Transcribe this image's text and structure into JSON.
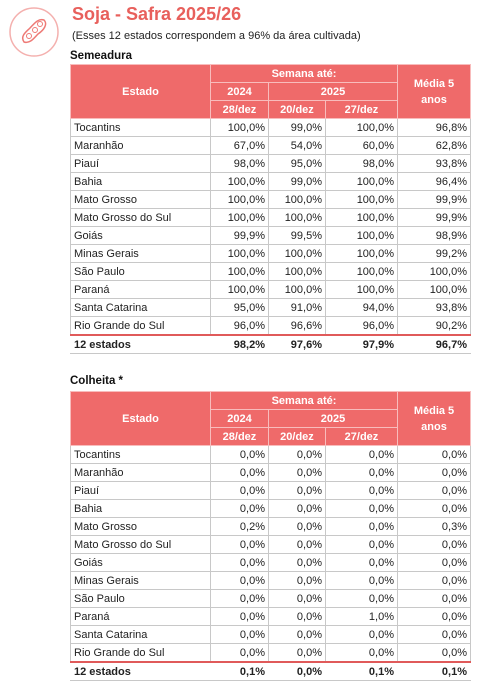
{
  "header": {
    "title": "Soja - Safra 2025/26",
    "subtitle": "(Esses 12 estados correspondem a 96% da área cultivada)"
  },
  "sections": [
    {
      "title": "Semeadura",
      "columns": {
        "estado": "Estado",
        "week": "Semana até:",
        "media": "Média  5 anos",
        "years": [
          "2024",
          "2025"
        ],
        "dates": [
          "28/dez",
          "20/dez",
          "27/dez"
        ]
      },
      "rows": [
        [
          "Tocantins",
          "100,0%",
          "99,0%",
          "100,0%",
          "96,8%"
        ],
        [
          "Maranhão",
          "67,0%",
          "54,0%",
          "60,0%",
          "62,8%"
        ],
        [
          "Piauí",
          "98,0%",
          "95,0%",
          "98,0%",
          "93,8%"
        ],
        [
          "Bahia",
          "100,0%",
          "99,0%",
          "100,0%",
          "96,4%"
        ],
        [
          "Mato Grosso",
          "100,0%",
          "100,0%",
          "100,0%",
          "99,9%"
        ],
        [
          "Mato Grosso do Sul",
          "100,0%",
          "100,0%",
          "100,0%",
          "99,9%"
        ],
        [
          "Goiás",
          "99,9%",
          "99,5%",
          "100,0%",
          "98,9%"
        ],
        [
          "Minas Gerais",
          "100,0%",
          "100,0%",
          "100,0%",
          "99,2%"
        ],
        [
          "São Paulo",
          "100,0%",
          "100,0%",
          "100,0%",
          "100,0%"
        ],
        [
          "Paraná",
          "100,0%",
          "100,0%",
          "100,0%",
          "100,0%"
        ],
        [
          "Santa Catarina",
          "95,0%",
          "91,0%",
          "94,0%",
          "93,8%"
        ],
        [
          "Rio Grande do Sul",
          "96,0%",
          "96,6%",
          "96,0%",
          "90,2%"
        ]
      ],
      "total": [
        "12 estados",
        "98,2%",
        "97,6%",
        "97,9%",
        "96,7%"
      ]
    },
    {
      "title": "Colheita *",
      "columns": {
        "estado": "Estado",
        "week": "Semana até:",
        "media": "Média  5 anos",
        "years": [
          "2024",
          "2025"
        ],
        "dates": [
          "28/dez",
          "20/dez",
          "27/dez"
        ]
      },
      "rows": [
        [
          "Tocantins",
          "0,0%",
          "0,0%",
          "0,0%",
          "0,0%"
        ],
        [
          "Maranhão",
          "0,0%",
          "0,0%",
          "0,0%",
          "0,0%"
        ],
        [
          "Piauí",
          "0,0%",
          "0,0%",
          "0,0%",
          "0,0%"
        ],
        [
          "Bahia",
          "0,0%",
          "0,0%",
          "0,0%",
          "0,0%"
        ],
        [
          "Mato Grosso",
          "0,2%",
          "0,0%",
          "0,0%",
          "0,3%"
        ],
        [
          "Mato Grosso do Sul",
          "0,0%",
          "0,0%",
          "0,0%",
          "0,0%"
        ],
        [
          "Goiás",
          "0,0%",
          "0,0%",
          "0,0%",
          "0,0%"
        ],
        [
          "Minas Gerais",
          "0,0%",
          "0,0%",
          "0,0%",
          "0,0%"
        ],
        [
          "São Paulo",
          "0,0%",
          "0,0%",
          "0,0%",
          "0,0%"
        ],
        [
          "Paraná",
          "0,0%",
          "0,0%",
          "1,0%",
          "0,0%"
        ],
        [
          "Santa Catarina",
          "0,0%",
          "0,0%",
          "0,0%",
          "0,0%"
        ],
        [
          "Rio Grande do Sul",
          "0,0%",
          "0,0%",
          "0,0%",
          "0,0%"
        ]
      ],
      "total": [
        "12 estados",
        "0,1%",
        "0,0%",
        "0,1%",
        "0,1%"
      ]
    }
  ]
}
